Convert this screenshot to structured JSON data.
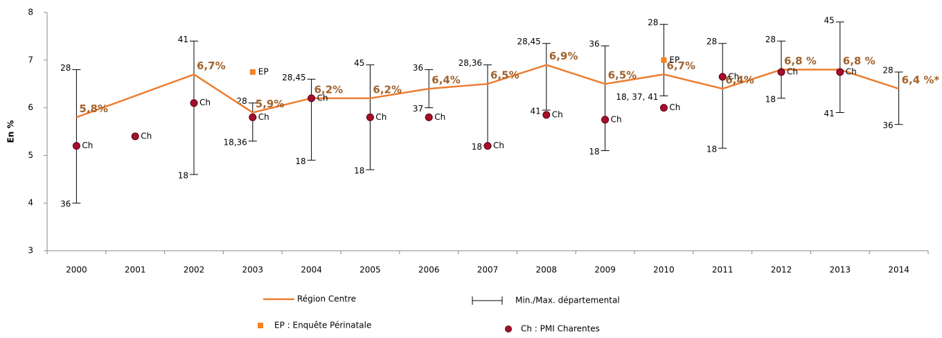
{
  "chart_data": {
    "type": "line",
    "y_label": "En %",
    "categories": [
      "2000",
      "2001",
      "2002",
      "2003",
      "2004",
      "2005",
      "2006",
      "2007",
      "2008",
      "2009",
      "2010",
      "2011",
      "2012",
      "2013",
      "2014"
    ],
    "ylim": [
      3,
      8
    ],
    "yticks": [
      3,
      4,
      5,
      6,
      7,
      8
    ],
    "series": [
      {
        "name": "Région Centre",
        "kind": "line",
        "color": "#ed7d31",
        "label_color": "#a0622d",
        "x": [
          "2000",
          "2002",
          "2003",
          "2004",
          "2005",
          "2006",
          "2007",
          "2008",
          "2009",
          "2010",
          "2011",
          "2012",
          "2013",
          "2014"
        ],
        "values": [
          5.8,
          6.7,
          5.9,
          6.2,
          6.2,
          6.4,
          6.5,
          6.9,
          6.5,
          6.7,
          6.4,
          6.8,
          6.8,
          6.4
        ],
        "value_labels": [
          "5,8%",
          "6,7%",
          "5,9%",
          "6,2%",
          "6,2%",
          "6,4%",
          "6,5%",
          "6,9%",
          "6,5%",
          "6,7%",
          "6,4%",
          "6,8 %",
          "6,8 %",
          "6,4 %*"
        ]
      },
      {
        "name": "Min./Max. départemental",
        "kind": "range",
        "color": "#000000",
        "high": [
          6.8,
          null,
          7.4,
          6.1,
          6.6,
          6.9,
          6.8,
          6.9,
          7.35,
          7.3,
          7.75,
          7.35,
          7.4,
          7.8,
          6.75
        ],
        "low": [
          4.0,
          null,
          4.6,
          5.3,
          4.9,
          4.7,
          6.0,
          5.2,
          5.95,
          5.1,
          6.25,
          5.15,
          6.2,
          5.9,
          5.65
        ],
        "high_labels": [
          "28",
          null,
          "41",
          "28",
          "28,45",
          "45",
          "36",
          "28,36",
          "28,45",
          "36",
          "28",
          "28",
          "28",
          "45",
          "28"
        ],
        "low_labels": [
          "36",
          null,
          "18",
          "18,36",
          "18",
          "18",
          "37",
          "18",
          "41",
          "18",
          "18, 37, 41",
          "18",
          "18",
          "41",
          "36"
        ]
      },
      {
        "name": "EP : Enquête Périnatale",
        "kind": "point",
        "marker": "square",
        "color": "#f5821f",
        "marker_label": "EP",
        "x": [
          "2003",
          "2010"
        ],
        "values": [
          6.75,
          7.0
        ]
      },
      {
        "name": "Ch : PMI Charentes",
        "kind": "point",
        "marker": "circle",
        "color": "#a50f2d",
        "marker_label": "Ch",
        "x": [
          "2000",
          "2001",
          "2002",
          "2003",
          "2004",
          "2005",
          "2006",
          "2007",
          "2008",
          "2009",
          "2010",
          "2011",
          "2012",
          "2013"
        ],
        "values": [
          5.2,
          5.4,
          6.1,
          5.8,
          6.2,
          5.8,
          5.8,
          5.2,
          5.85,
          5.75,
          6.0,
          6.65,
          6.75,
          6.75
        ]
      }
    ]
  }
}
